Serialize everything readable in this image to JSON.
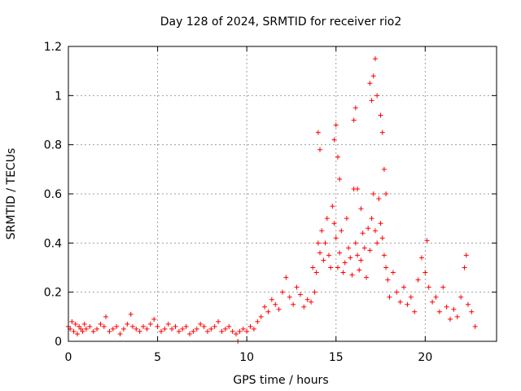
{
  "chart_data": {
    "type": "scatter",
    "title": "Day 128 of 2024, SRMTID for receiver rio2",
    "xlabel": "GPS time / hours",
    "ylabel": "SRMTID / TECUs",
    "xlim": [
      0,
      24
    ],
    "ylim": [
      0,
      1.2
    ],
    "x_ticks": [
      0,
      5,
      10,
      15,
      20
    ],
    "x_tick_labels": [
      "0",
      "5",
      "10",
      "15",
      "20"
    ],
    "y_ticks": [
      0,
      0.2,
      0.4,
      0.6,
      0.8,
      1,
      1.2
    ],
    "y_tick_labels": [
      "0",
      "0.2",
      "0.4",
      "0.6",
      "0.8",
      "1",
      "1.2"
    ],
    "grid": true,
    "marker": "plus",
    "color": "#ff0000",
    "series": [
      {
        "name": "SRMTID",
        "x": [
          0.0,
          0.1,
          0.2,
          0.3,
          0.4,
          0.5,
          0.6,
          0.7,
          0.8,
          0.9,
          1.0,
          1.2,
          1.4,
          1.6,
          1.8,
          2.0,
          2.1,
          2.3,
          2.5,
          2.7,
          2.9,
          3.1,
          3.3,
          3.5,
          3.6,
          3.8,
          4.0,
          4.2,
          4.4,
          4.6,
          4.8,
          5.0,
          5.2,
          5.4,
          5.6,
          5.8,
          6.0,
          6.2,
          6.4,
          6.6,
          6.8,
          7.0,
          7.2,
          7.4,
          7.6,
          7.8,
          8.0,
          8.2,
          8.4,
          8.6,
          8.8,
          9.0,
          9.2,
          9.4,
          9.5,
          9.6,
          9.8,
          10.0,
          10.2,
          10.4,
          10.6,
          10.8,
          11.0,
          11.2,
          11.4,
          11.6,
          11.8,
          12.0,
          12.2,
          12.4,
          12.6,
          12.8,
          13.0,
          13.2,
          13.4,
          13.6,
          13.7,
          13.8,
          13.9,
          14.0,
          14.1,
          14.2,
          14.3,
          14.4,
          14.5,
          14.6,
          14.7,
          14.8,
          14.9,
          15.0,
          15.1,
          15.2,
          15.3,
          15.4,
          15.5,
          15.6,
          15.7,
          15.8,
          15.9,
          16.0,
          16.1,
          16.2,
          16.3,
          16.4,
          16.5,
          16.6,
          16.7,
          16.8,
          16.9,
          17.0,
          17.1,
          17.2,
          17.3,
          17.4,
          17.5,
          17.6,
          17.7,
          17.8,
          17.9,
          18.0,
          18.2,
          18.4,
          18.6,
          18.8,
          19.0,
          19.2,
          19.4,
          19.6,
          19.8,
          20.0,
          20.2,
          20.4,
          20.6,
          20.8,
          21.0,
          21.2,
          21.4,
          21.6,
          21.8,
          22.0,
          22.2,
          22.4,
          22.6,
          22.8,
          14.0,
          14.1,
          14.9,
          15.0,
          15.1,
          16.0,
          16.1,
          16.9,
          17.0,
          17.1,
          17.2,
          17.3,
          17.5,
          17.6,
          17.7,
          15.2,
          16.2,
          16.4,
          17.8,
          20.1,
          22.3
        ],
        "y": [
          0.06,
          0.05,
          0.08,
          0.04,
          0.07,
          0.03,
          0.06,
          0.05,
          0.04,
          0.07,
          0.05,
          0.06,
          0.04,
          0.05,
          0.07,
          0.06,
          0.1,
          0.04,
          0.05,
          0.06,
          0.03,
          0.05,
          0.07,
          0.11,
          0.06,
          0.05,
          0.04,
          0.06,
          0.05,
          0.07,
          0.09,
          0.06,
          0.04,
          0.05,
          0.07,
          0.05,
          0.06,
          0.04,
          0.05,
          0.06,
          0.03,
          0.04,
          0.05,
          0.07,
          0.06,
          0.04,
          0.05,
          0.06,
          0.08,
          0.04,
          0.05,
          0.06,
          0.04,
          0.03,
          0.0,
          0.04,
          0.05,
          0.04,
          0.06,
          0.05,
          0.08,
          0.1,
          0.14,
          0.12,
          0.17,
          0.15,
          0.13,
          0.2,
          0.26,
          0.18,
          0.15,
          0.22,
          0.19,
          0.14,
          0.17,
          0.16,
          0.3,
          0.2,
          0.28,
          0.4,
          0.36,
          0.45,
          0.33,
          0.4,
          0.5,
          0.35,
          0.3,
          0.55,
          0.48,
          0.42,
          0.3,
          0.36,
          0.45,
          0.28,
          0.32,
          0.5,
          0.38,
          0.34,
          0.27,
          0.62,
          0.4,
          0.35,
          0.29,
          0.33,
          0.44,
          0.38,
          0.26,
          0.46,
          0.37,
          0.5,
          0.6,
          0.45,
          0.4,
          0.58,
          0.48,
          0.42,
          0.35,
          0.3,
          0.25,
          0.18,
          0.28,
          0.2,
          0.16,
          0.22,
          0.15,
          0.18,
          0.12,
          0.25,
          0.34,
          0.28,
          0.22,
          0.16,
          0.18,
          0.12,
          0.22,
          0.14,
          0.09,
          0.13,
          0.1,
          0.18,
          0.3,
          0.15,
          0.12,
          0.06,
          0.85,
          0.78,
          0.82,
          0.88,
          0.75,
          0.9,
          0.95,
          1.05,
          0.98,
          1.08,
          1.15,
          1.0,
          0.92,
          0.85,
          0.7,
          0.66,
          0.62,
          0.54,
          0.6,
          0.41,
          0.35
        ]
      }
    ]
  }
}
